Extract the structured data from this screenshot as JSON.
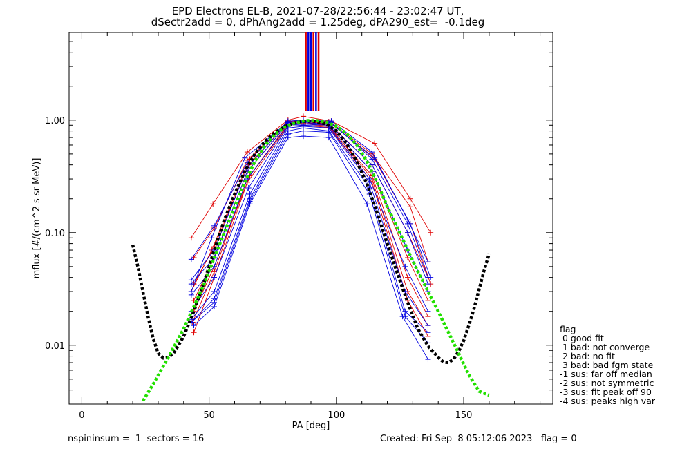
{
  "chart_data": {
    "type": "line",
    "title": "EPD Electrons EL-B, 2021-07-28/22:56:44 - 23:02:47 UT,",
    "subtitle": "dSectr2add = 0, dPhAng2add = 1.25deg, dPA290_est=  -0.1deg",
    "xlabel": "PA [deg]",
    "ylabel": "mflux [#/(cm^2 s sr MeV)]",
    "xlim": [
      -5,
      185
    ],
    "ylim": [
      0.003,
      6
    ],
    "yscale": "log",
    "x_ticks": [
      0,
      50,
      100,
      150
    ],
    "y_ticks": [
      0.01,
      0.1,
      1.0
    ],
    "y_tick_labels": [
      "0.01",
      "0.10",
      "1.00"
    ],
    "colors": {
      "red": "#e00000",
      "blue": "#0000e0",
      "fit": "#000000",
      "median": "#22e000"
    },
    "peak_markers": {
      "x": [
        88,
        89,
        90,
        91,
        92,
        93
      ],
      "colors": [
        "red",
        "blue",
        "blue",
        "red",
        "blue",
        "red"
      ]
    },
    "series": [
      {
        "color": "red",
        "x": [
          43,
          51.5,
          65,
          81,
          87,
          98,
          115,
          129,
          137
        ],
        "y": [
          0.09,
          0.18,
          0.52,
          1.0,
          1.08,
          0.98,
          0.62,
          0.2,
          0.1
        ]
      },
      {
        "color": "red",
        "x": [
          44,
          52,
          65,
          81,
          87,
          98,
          114,
          129,
          136
        ],
        "y": [
          0.06,
          0.11,
          0.44,
          0.98,
          1.0,
          0.95,
          0.5,
          0.17,
          0.055
        ]
      },
      {
        "color": "red",
        "x": [
          44,
          52,
          65.5,
          81,
          87,
          97,
          114,
          128,
          136
        ],
        "y": [
          0.035,
          0.075,
          0.4,
          0.95,
          0.97,
          0.93,
          0.4,
          0.1,
          0.04
        ]
      },
      {
        "color": "red",
        "x": [
          44,
          52,
          65,
          81,
          87,
          97,
          114,
          128,
          136
        ],
        "y": [
          0.025,
          0.06,
          0.35,
          0.93,
          0.95,
          0.9,
          0.35,
          0.06,
          0.025
        ]
      },
      {
        "color": "red",
        "x": [
          44,
          52,
          66,
          81,
          87,
          97,
          114,
          128,
          136
        ],
        "y": [
          0.02,
          0.05,
          0.32,
          0.9,
          0.93,
          0.88,
          0.32,
          0.04,
          0.018
        ]
      },
      {
        "color": "red",
        "x": [
          43.5,
          52,
          65,
          81,
          87,
          97,
          114,
          128,
          136
        ],
        "y": [
          0.016,
          0.045,
          0.3,
          0.92,
          0.95,
          0.9,
          0.3,
          0.03,
          0.015
        ]
      },
      {
        "color": "red",
        "x": [
          44,
          52,
          65,
          81,
          87,
          97,
          114,
          128,
          136
        ],
        "y": [
          0.013,
          0.04,
          0.28,
          0.88,
          0.9,
          0.86,
          0.28,
          0.025,
          0.012
        ]
      },
      {
        "color": "red",
        "x": [
          43,
          51,
          66,
          81,
          87,
          97,
          115,
          129,
          137
        ],
        "y": [
          0.03,
          0.07,
          0.45,
          0.97,
          1.0,
          0.97,
          0.45,
          0.12,
          0.035
        ]
      },
      {
        "color": "blue",
        "x": [
          43,
          52,
          65,
          81,
          87,
          98,
          114,
          128,
          136
        ],
        "y": [
          0.058,
          0.115,
          0.42,
          0.98,
          1.0,
          0.98,
          0.52,
          0.13,
          0.055
        ]
      },
      {
        "color": "blue",
        "x": [
          43,
          52,
          65,
          81,
          87,
          98,
          114,
          128,
          136
        ],
        "y": [
          0.038,
          0.07,
          0.38,
          0.95,
          0.98,
          0.95,
          0.45,
          0.12,
          0.04
        ]
      },
      {
        "color": "blue",
        "x": [
          43,
          52,
          65,
          81,
          87,
          97,
          114,
          128,
          136
        ],
        "y": [
          0.035,
          0.06,
          0.35,
          0.93,
          0.95,
          0.92,
          0.4,
          0.1,
          0.035
        ]
      },
      {
        "color": "blue",
        "x": [
          43,
          52,
          65,
          81,
          87,
          97,
          114,
          128,
          136
        ],
        "y": [
          0.028,
          0.05,
          0.3,
          0.9,
          0.92,
          0.9,
          0.35,
          0.07,
          0.03
        ]
      },
      {
        "color": "blue",
        "x": [
          43,
          52,
          65.5,
          81,
          87,
          97,
          113,
          127,
          136
        ],
        "y": [
          0.02,
          0.04,
          0.25,
          0.88,
          0.9,
          0.88,
          0.3,
          0.05,
          0.02
        ]
      },
      {
        "color": "blue",
        "x": [
          43,
          52,
          66,
          81,
          87,
          97,
          113,
          127,
          136
        ],
        "y": [
          0.017,
          0.03,
          0.22,
          0.85,
          0.88,
          0.85,
          0.28,
          0.03,
          0.015
        ]
      },
      {
        "color": "blue",
        "x": [
          43,
          52,
          66,
          81,
          87,
          97,
          113,
          127,
          136
        ],
        "y": [
          0.016,
          0.026,
          0.2,
          0.8,
          0.85,
          0.8,
          0.25,
          0.02,
          0.013
        ]
      },
      {
        "color": "blue",
        "x": [
          43,
          52,
          66,
          81,
          87,
          97,
          113,
          127,
          136
        ],
        "y": [
          0.016,
          0.024,
          0.19,
          0.75,
          0.8,
          0.78,
          0.22,
          0.018,
          0.0105
        ]
      },
      {
        "color": "blue",
        "x": [
          44,
          52,
          66,
          81,
          87,
          97,
          112,
          126,
          136
        ],
        "y": [
          0.015,
          0.022,
          0.18,
          0.7,
          0.72,
          0.7,
          0.18,
          0.018,
          0.0075
        ]
      },
      {
        "color": "blue",
        "x": [
          43,
          51,
          64,
          81,
          87,
          97,
          115,
          129,
          137
        ],
        "y": [
          0.03,
          0.09,
          0.46,
          0.96,
          0.98,
          0.96,
          0.46,
          0.12,
          0.04
        ]
      }
    ],
    "fit_curve": {
      "x": [
        20,
        22,
        24,
        26,
        28,
        30,
        32,
        34,
        36,
        38,
        40,
        44,
        48,
        52,
        56,
        60,
        64,
        68,
        72,
        76,
        80,
        84,
        88,
        90,
        92,
        96,
        100,
        104,
        108,
        112,
        116,
        120,
        124,
        128,
        132,
        136,
        140,
        142,
        144,
        146,
        148,
        150,
        152,
        154,
        156,
        158,
        160
      ],
      "y": [
        0.078,
        0.05,
        0.03,
        0.018,
        0.0115,
        0.0085,
        0.0077,
        0.0078,
        0.0085,
        0.01,
        0.012,
        0.02,
        0.036,
        0.07,
        0.13,
        0.22,
        0.35,
        0.5,
        0.65,
        0.78,
        0.88,
        0.95,
        0.98,
        0.98,
        0.97,
        0.92,
        0.8,
        0.62,
        0.43,
        0.27,
        0.15,
        0.08,
        0.043,
        0.024,
        0.014,
        0.0098,
        0.0078,
        0.0071,
        0.007,
        0.0075,
        0.0088,
        0.011,
        0.015,
        0.021,
        0.031,
        0.046,
        0.065
      ]
    },
    "median_curve": {
      "x": [
        24,
        28,
        32,
        36,
        40,
        44,
        48,
        52,
        56,
        60,
        64,
        68,
        72,
        76,
        80,
        84,
        88,
        92,
        96,
        100,
        104,
        108,
        112,
        116,
        120,
        124,
        128,
        132,
        136,
        140,
        144,
        148,
        152,
        156,
        160
      ],
      "y": [
        0.0032,
        0.0045,
        0.0065,
        0.0095,
        0.014,
        0.022,
        0.035,
        0.06,
        0.1,
        0.17,
        0.28,
        0.43,
        0.6,
        0.75,
        0.87,
        0.95,
        0.99,
        0.99,
        0.96,
        0.88,
        0.76,
        0.6,
        0.43,
        0.28,
        0.17,
        0.11,
        0.07,
        0.045,
        0.03,
        0.02,
        0.013,
        0.0085,
        0.0055,
        0.0039,
        0.0036
      ]
    }
  },
  "footer": {
    "left": "nspininsum =  1  sectors = 16",
    "right": "Created: Fri Sep  8 05:12:06 2023   flag = 0"
  },
  "legend": {
    "title": "flag",
    "items": [
      " 0 good fit",
      " 1 bad: not converge",
      " 2 bad: no fit",
      " 3 bad: bad fgm state",
      "-1 sus: far off median",
      "-2 sus: not symmetric",
      "-3 sus: fit peak off 90",
      "-4 sus: peaks high var"
    ]
  }
}
